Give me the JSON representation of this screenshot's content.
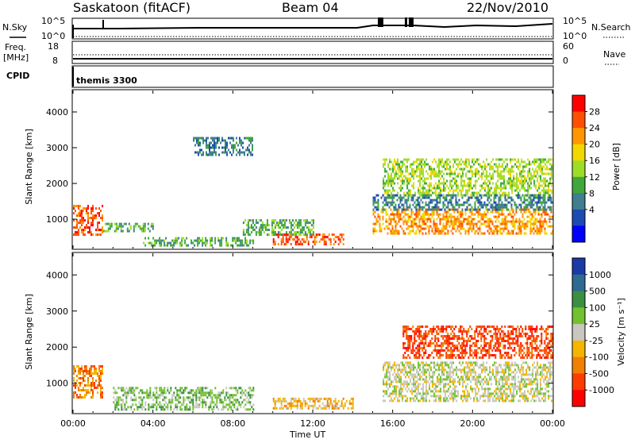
{
  "header": {
    "station": "Saskatoon (fitACF)",
    "beam": "Beam 04",
    "date": "22/Nov/2010"
  },
  "params": {
    "nsky_label": "N.Sky",
    "nsky_ticks": [
      "10^5",
      "10^0"
    ],
    "nsearch_label": "N.Search",
    "nsearch_ticks": [
      "10^5",
      "10^0"
    ],
    "freq_label": "Freq.",
    "freq_unit": "[MHz]",
    "freq_ticks": [
      "18",
      "8"
    ],
    "nave_label": "Nave",
    "nave_ticks": [
      "60",
      "0"
    ],
    "cpid_label": "CPID",
    "cpid_value": "themis 3300"
  },
  "chart_data": [
    {
      "type": "heatmap",
      "name": "power",
      "ylabel": "Slant Range [km]",
      "y_ticks": [
        "4000",
        "3000",
        "2000",
        "1000"
      ],
      "ylim": [
        180,
        4600
      ],
      "colorbar": {
        "label": "Power [dB]",
        "ticks": [
          "28",
          "24",
          "20",
          "16",
          "12",
          "8",
          "4"
        ],
        "range": [
          0,
          30
        ],
        "colors": [
          "#ff0000",
          "#ff4f00",
          "#ff9600",
          "#f2d700",
          "#9fdc26",
          "#3fa73c",
          "#3f7f8f",
          "#1c4bb4",
          "#0000ff"
        ]
      },
      "regions": [
        {
          "x0": 0.0,
          "x1": 1.5,
          "y0": 600,
          "y1": 1400,
          "level": 26
        },
        {
          "x0": 1.5,
          "x1": 4.0,
          "y0": 700,
          "y1": 900,
          "level": 12
        },
        {
          "x0": 3.5,
          "x1": 9.0,
          "y0": 250,
          "y1": 500,
          "level": 10
        },
        {
          "x0": 6.0,
          "x1": 9.0,
          "y0": 2800,
          "y1": 3300,
          "level": 6
        },
        {
          "x0": 10.0,
          "x1": 13.5,
          "y0": 300,
          "y1": 600,
          "level": 25
        },
        {
          "x0": 8.5,
          "x1": 12.0,
          "y0": 600,
          "y1": 1000,
          "level": 10
        },
        {
          "x0": 15.0,
          "x1": 24.0,
          "y0": 600,
          "y1": 1300,
          "level": 24
        },
        {
          "x0": 15.5,
          "x1": 24.0,
          "y0": 1700,
          "y1": 2700,
          "level": 16
        },
        {
          "x0": 15.0,
          "x1": 24.0,
          "y0": 1300,
          "y1": 1700,
          "level": 8
        }
      ]
    },
    {
      "type": "heatmap",
      "name": "velocity",
      "xlabel": "Time UT",
      "ylabel": "Slant Range [km]",
      "x_ticks": [
        "00:00",
        "04:00",
        "08:00",
        "12:00",
        "16:00",
        "20:00",
        "00:00"
      ],
      "x_hours": [
        0,
        4,
        8,
        12,
        16,
        20,
        24
      ],
      "y_ticks": [
        "4000",
        "3000",
        "2000",
        "1000"
      ],
      "ylim": [
        180,
        4600
      ],
      "colorbar": {
        "label": "Velocity [m s⁻¹]",
        "ticks": [
          "1000",
          "500",
          "100",
          "25",
          "-25",
          "-100",
          "-500",
          "-1000"
        ],
        "colors": [
          "#1a3aa6",
          "#2f6a90",
          "#3a8f40",
          "#72c12f",
          "#c8c8c0",
          "#f4b500",
          "#f17f00",
          "#ff3c00",
          "#ff0000"
        ]
      },
      "regions": [
        {
          "x0": 0.0,
          "x1": 1.5,
          "y0": 600,
          "y1": 1500,
          "color_index": 6
        },
        {
          "x0": 2.0,
          "x1": 9.0,
          "y0": 300,
          "y1": 900,
          "color_index": 3
        },
        {
          "x0": 10.0,
          "x1": 14.0,
          "y0": 300,
          "y1": 600,
          "color_index": 5
        },
        {
          "x0": 15.5,
          "x1": 24.0,
          "y0": 500,
          "y1": 1600,
          "color_index": 4
        },
        {
          "x0": 16.5,
          "x1": 24.0,
          "y0": 1700,
          "y1": 2600,
          "color_index": 7
        }
      ]
    }
  ]
}
